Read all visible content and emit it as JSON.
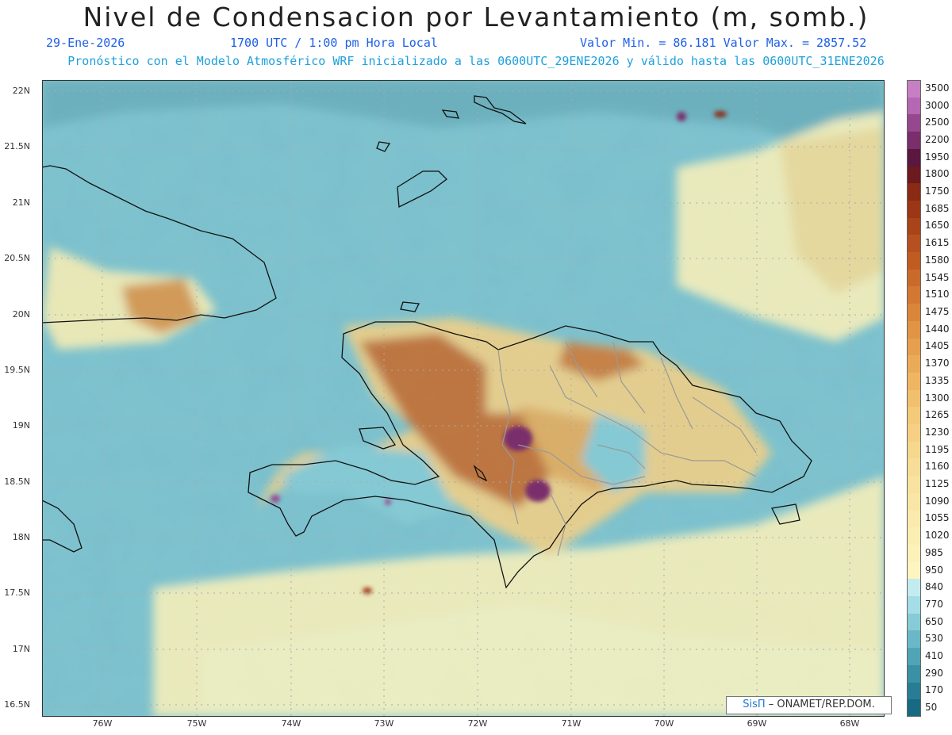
{
  "title": "Nivel de Condensacion por Levantamiento (m, somb.)",
  "header": {
    "date": "29-Ene-2026",
    "time": "1700 UTC / 1:00 pm Hora Local",
    "minmax": "Valor Min. = 86.181  Valor Max. = 2857.52",
    "model_note": "Pronóstico con el Modelo Atmosférico WRF inicializado a las 0600UTC_29ENE2026 y válido hasta las  0600UTC_31ENE2026"
  },
  "axes": {
    "lat_labels": [
      "22N",
      "21.5N",
      "21N",
      "20.5N",
      "20N",
      "19.5N",
      "19N",
      "18.5N",
      "18N",
      "17.5N",
      "17N",
      "16.5N"
    ],
    "lon_labels": [
      "76W",
      "75W",
      "74W",
      "73W",
      "72W",
      "71W",
      "70W",
      "69W",
      "68W"
    ]
  },
  "colorbar": {
    "labels": [
      "3500",
      "3000",
      "2500",
      "2200",
      "1950",
      "1800",
      "1750",
      "1685",
      "1650",
      "1615",
      "1580",
      "1545",
      "1510",
      "1475",
      "1440",
      "1405",
      "1370",
      "1335",
      "1300",
      "1265",
      "1230",
      "1195",
      "1160",
      "1125",
      "1090",
      "1055",
      "1020",
      "985",
      "950",
      "840",
      "770",
      "650",
      "530",
      "410",
      "290",
      "170",
      "50"
    ],
    "colors": [
      "#c77fc4",
      "#b567b4",
      "#95488e",
      "#7a2e6c",
      "#5a1840",
      "#6b1a1f",
      "#8a2a14",
      "#9b3714",
      "#a8431a",
      "#b55120",
      "#c05c22",
      "#c96a2a",
      "#d27832",
      "#da863a",
      "#e09444",
      "#e59f4e",
      "#eaab58",
      "#eeb663",
      "#f1c06e",
      "#f3c97a",
      "#f5d084",
      "#f6d78e",
      "#f7dd97",
      "#f8e29f",
      "#f9e6a6",
      "#faeaad",
      "#fbeeb3",
      "#fcf1b9",
      "#fdf4c0",
      "#c2ecef",
      "#a4dde5",
      "#86cbd6",
      "#6ab8c7",
      "#50a4b6",
      "#3a90a5",
      "#287c93",
      "#186a83"
    ]
  },
  "credit": {
    "logo": "SisΠ",
    "text": "– ONAMET/REP.DOM."
  }
}
